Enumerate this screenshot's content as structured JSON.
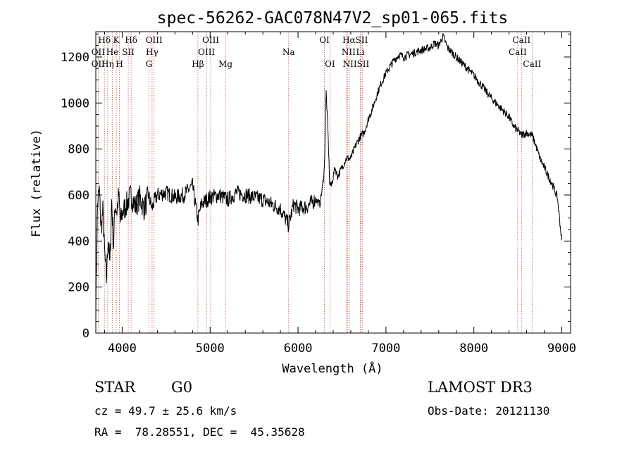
{
  "chart_data": {
    "type": "line",
    "title": "spec-56262-GAC078N47V2_sp01-065.fits",
    "xlabel": "Wavelength (Å)",
    "ylabel": "Flux (relative)",
    "xlim": [
      3700,
      9100
    ],
    "ylim": [
      0,
      1310
    ],
    "xticks": [
      4000,
      5000,
      6000,
      7000,
      8000,
      9000
    ],
    "yticks": [
      0,
      200,
      400,
      600,
      800,
      1000,
      1200
    ],
    "grid": false,
    "series": [
      {
        "name": "flux",
        "x": [
          3700,
          3720,
          3740,
          3760,
          3780,
          3800,
          3820,
          3840,
          3860,
          3880,
          3900,
          3920,
          3940,
          3960,
          3980,
          4000,
          4050,
          4100,
          4150,
          4200,
          4250,
          4300,
          4340,
          4360,
          4400,
          4500,
          4600,
          4700,
          4800,
          4861,
          4900,
          5000,
          5100,
          5200,
          5300,
          5400,
          5500,
          5600,
          5700,
          5800,
          5893,
          5950,
          6000,
          6100,
          6200,
          6250,
          6280,
          6300,
          6320,
          6340,
          6360,
          6380,
          6400,
          6420,
          6450,
          6500,
          6550,
          6563,
          6600,
          6650,
          6700,
          6750,
          6800,
          6850,
          6900,
          6950,
          7000,
          7050,
          7100,
          7150,
          7200,
          7300,
          7400,
          7500,
          7550,
          7600,
          7650,
          7700,
          7800,
          7900,
          8000,
          8100,
          8200,
          8300,
          8400,
          8450,
          8500,
          8542,
          8600,
          8662,
          8700,
          8750,
          8800,
          8850,
          8900,
          8950,
          9000
        ],
        "y": [
          110,
          560,
          620,
          450,
          530,
          350,
          230,
          420,
          290,
          580,
          380,
          560,
          530,
          600,
          480,
          520,
          560,
          600,
          550,
          590,
          540,
          600,
          540,
          570,
          600,
          610,
          590,
          600,
          640,
          490,
          560,
          590,
          600,
          580,
          610,
          600,
          590,
          580,
          560,
          540,
          470,
          560,
          540,
          550,
          580,
          560,
          640,
          720,
          1050,
          880,
          650,
          640,
          680,
          720,
          680,
          720,
          760,
          760,
          760,
          810,
          850,
          870,
          930,
          980,
          1040,
          1090,
          1130,
          1160,
          1190,
          1210,
          1200,
          1215,
          1230,
          1240,
          1260,
          1250,
          1290,
          1240,
          1200,
          1160,
          1120,
          1070,
          1020,
          980,
          940,
          900,
          880,
          860,
          870,
          860,
          820,
          760,
          720,
          680,
          640,
          590,
          400
        ]
      }
    ],
    "line_labels": {
      "row1": [
        "Hδ",
        "K",
        "Hδ",
        "OIII",
        "OIII",
        "OI",
        "HαSII",
        "CaII"
      ],
      "row2": [
        "OII",
        "He",
        "SII",
        "Hγ",
        "OIII",
        "Na",
        "NII",
        "Li",
        "CaII"
      ],
      "row3": [
        "OII",
        "Hη",
        "H",
        "G",
        "Hβ",
        "Mg",
        "OI",
        "NIISII",
        "CaII"
      ]
    },
    "line_wavelengths": [
      3727,
      3798,
      3835,
      3889,
      3933,
      3969,
      4069,
      4102,
      4305,
      4340,
      4363,
      4861,
      4959,
      5007,
      5175,
      5893,
      6300,
      6363,
      6548,
      6563,
      6584,
      6708,
      6717,
      6731,
      8498,
      8542,
      8662
    ]
  },
  "footer": {
    "object_class": "STAR",
    "subclass": "G0",
    "survey": "LAMOST DR3",
    "redshift": "cz = 49.7 ± 25.6 km/s",
    "obs_date": "Obs-Date: 20121130",
    "coords": "RA =  78.28551, DEC =  45.35628"
  }
}
